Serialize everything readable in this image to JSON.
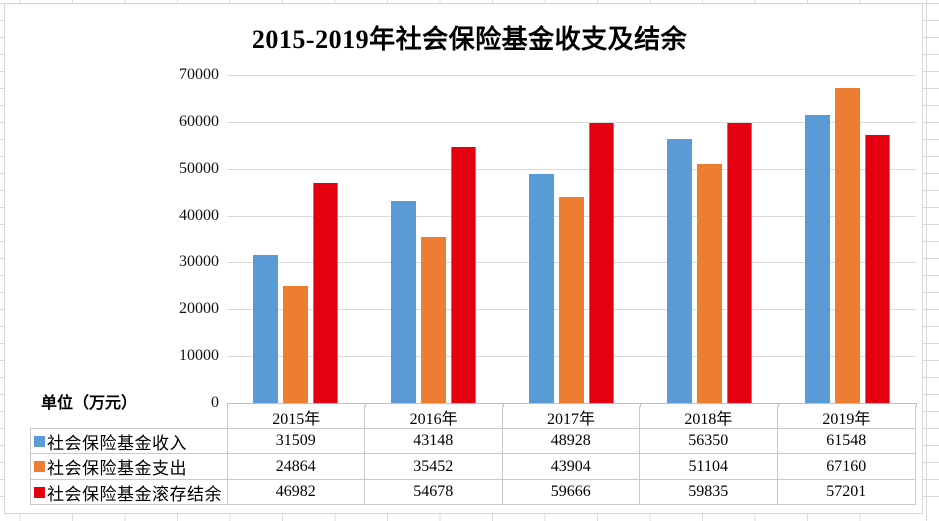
{
  "unit_label": "单位（万元）",
  "colors": {
    "income_blue": "#5B9BD5",
    "expense_orange": "#ED7D31",
    "balance_red": "#E4000F",
    "balance_red_edge": "#F4565A",
    "plot_gridline": "#DADADA",
    "table_border": "#C9C9C9"
  },
  "chart_data": {
    "type": "bar",
    "title": "2015-2019年社会保险基金收支及结余",
    "categories": [
      "2015年",
      "2016年",
      "2017年",
      "2018年",
      "2019年"
    ],
    "series": [
      {
        "name": "社会保险基金收入",
        "color": "#5B9BD5",
        "values": [
          31509,
          43148,
          48928,
          56350,
          61548
        ]
      },
      {
        "name": "社会保险基金支出",
        "color": "#ED7D31",
        "values": [
          24864,
          35452,
          43904,
          51104,
          67160
        ]
      },
      {
        "name": "社会保险基金滚存结余",
        "color": "#E4000F",
        "values": [
          46982,
          54678,
          59666,
          59835,
          57201
        ]
      }
    ],
    "ylabel": "单位（万元）",
    "ylim": [
      0,
      70000
    ],
    "y_tick_step": 10000,
    "y_tick_labels": [
      "0",
      "10000",
      "20000",
      "30000",
      "40000",
      "50000",
      "60000",
      "70000"
    ],
    "grid": true,
    "legend_position": "data-table-left"
  }
}
